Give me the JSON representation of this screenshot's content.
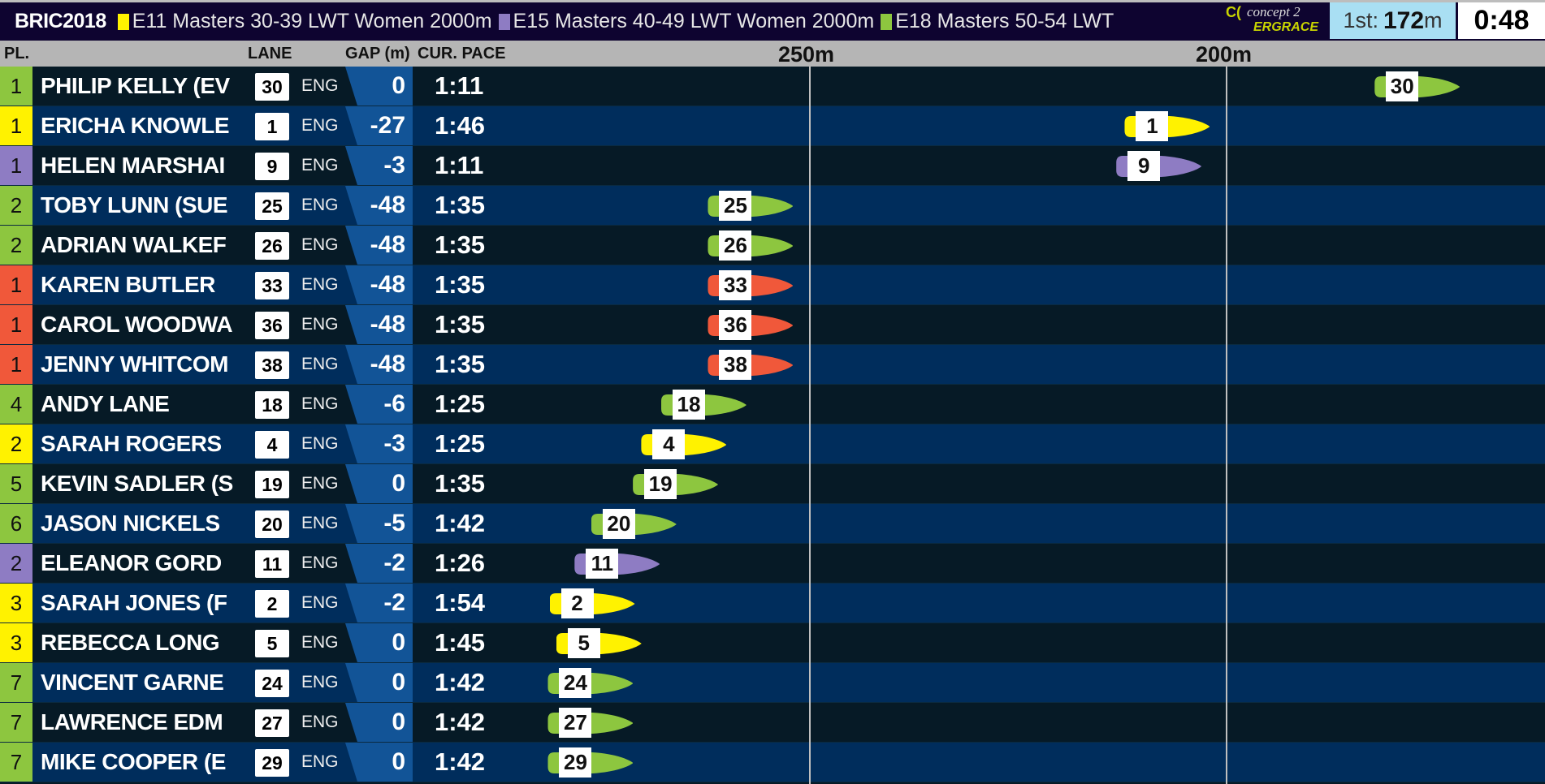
{
  "header": {
    "title": "BRIC2018",
    "events": [
      {
        "label": "E11 Masters 30-39 LWT Women 2000m",
        "color": "#fff200"
      },
      {
        "label": "E15 Masters 40-49 LWT Women 2000m",
        "color": "#8e7cc3"
      },
      {
        "label": "E18 Masters 50-54 LWT",
        "color": "#8dc63f"
      }
    ],
    "logo": {
      "brand": "concept 2",
      "sub": "ERGRACE"
    },
    "leader_label": "1st:",
    "leader_value": "172",
    "leader_unit": "m",
    "clock": "0:48"
  },
  "columns": {
    "place": "PL.",
    "lane": "LANE",
    "gap": "GAP (m)",
    "pace": "CUR. PACE",
    "mark_250": "250m",
    "mark_200": "200m"
  },
  "colors": {
    "green": "#8dc63f",
    "yellow": "#fff200",
    "purple": "#8e7cc3",
    "red": "#f0583a"
  },
  "track": {
    "axis_unit": "m remaining",
    "marks": [
      250,
      200
    ],
    "leader_remaining": 172
  },
  "rows": [
    {
      "place": "1",
      "name": "PHILIP KELLY (EV",
      "lane": "30",
      "country": "ENG",
      "gap": "0",
      "pace": "1:11",
      "color": "green",
      "remaining": 172
    },
    {
      "place": "1",
      "name": "ERICHA KNOWLE",
      "lane": "1",
      "country": "ENG",
      "gap": "-27",
      "pace": "1:46",
      "color": "yellow",
      "remaining": 202
    },
    {
      "place": "1",
      "name": "HELEN MARSHAI",
      "lane": "9",
      "country": "ENG",
      "gap": "-3",
      "pace": "1:11",
      "color": "purple",
      "remaining": 203
    },
    {
      "place": "2",
      "name": "TOBY LUNN (SUE",
      "lane": "25",
      "country": "ENG",
      "gap": "-48",
      "pace": "1:35",
      "color": "green",
      "remaining": 252
    },
    {
      "place": "2",
      "name": "ADRIAN WALKEF",
      "lane": "26",
      "country": "ENG",
      "gap": "-48",
      "pace": "1:35",
      "color": "green",
      "remaining": 252
    },
    {
      "place": "1",
      "name": "KAREN BUTLER",
      "lane": "33",
      "country": "ENG",
      "gap": "-48",
      "pace": "1:35",
      "color": "red",
      "remaining": 252
    },
    {
      "place": "1",
      "name": "CAROL WOODWA",
      "lane": "36",
      "country": "ENG",
      "gap": "-48",
      "pace": "1:35",
      "color": "red",
      "remaining": 252
    },
    {
      "place": "1",
      "name": "JENNY WHITCOM",
      "lane": "38",
      "country": "ENG",
      "gap": "-48",
      "pace": "1:35",
      "color": "red",
      "remaining": 252
    },
    {
      "place": "4",
      "name": "ANDY LANE",
      "lane": "18",
      "country": "ENG",
      "gap": "-6",
      "pace": "1:25",
      "color": "green",
      "remaining": 257.6
    },
    {
      "place": "2",
      "name": "SARAH ROGERS",
      "lane": "4",
      "country": "ENG",
      "gap": "-3",
      "pace": "1:25",
      "color": "yellow",
      "remaining": 260
    },
    {
      "place": "5",
      "name": "KEVIN SADLER (S",
      "lane": "19",
      "country": "ENG",
      "gap": "0",
      "pace": "1:35",
      "color": "green",
      "remaining": 261
    },
    {
      "place": "6",
      "name": "JASON NICKELS",
      "lane": "20",
      "country": "ENG",
      "gap": "-5",
      "pace": "1:42",
      "color": "green",
      "remaining": 266
    },
    {
      "place": "2",
      "name": "ELEANOR GORD",
      "lane": "11",
      "country": "ENG",
      "gap": "-2",
      "pace": "1:26",
      "color": "purple",
      "remaining": 268
    },
    {
      "place": "3",
      "name": "SARAH JONES (F",
      "lane": "2",
      "country": "ENG",
      "gap": "-2",
      "pace": "1:54",
      "color": "yellow",
      "remaining": 271
    },
    {
      "place": "3",
      "name": "REBECCA LONG",
      "lane": "5",
      "country": "ENG",
      "gap": "0",
      "pace": "1:45",
      "color": "yellow",
      "remaining": 270.2
    },
    {
      "place": "7",
      "name": "VINCENT GARNE",
      "lane": "24",
      "country": "ENG",
      "gap": "0",
      "pace": "1:42",
      "color": "green",
      "remaining": 271.2
    },
    {
      "place": "7",
      "name": "LAWRENCE EDM",
      "lane": "27",
      "country": "ENG",
      "gap": "0",
      "pace": "1:42",
      "color": "green",
      "remaining": 271.2
    },
    {
      "place": "7",
      "name": "MIKE COOPER (E",
      "lane": "29",
      "country": "ENG",
      "gap": "0",
      "pace": "1:42",
      "color": "green",
      "remaining": 271.2
    }
  ]
}
